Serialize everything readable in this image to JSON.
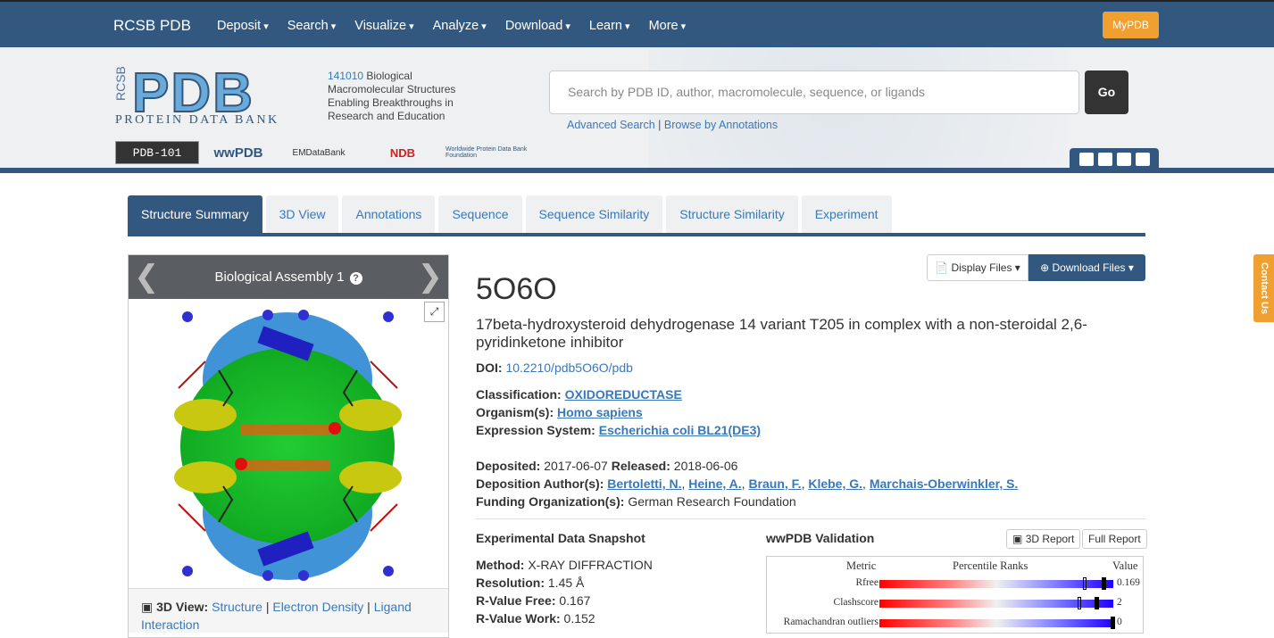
{
  "navbar": {
    "brand": "RCSB PDB",
    "items": [
      "Deposit",
      "Search",
      "Visualize",
      "Analyze",
      "Download",
      "Learn",
      "More"
    ],
    "mypdb": "MyPDB"
  },
  "header": {
    "logo_side": "RCSB",
    "logo_main": "PDB",
    "logo_sub": "PROTEIN DATA BANK",
    "count": "141010",
    "tagline": "Biological Macromolecular Structures Enabling Breakthroughs in Research and Education",
    "partners": [
      "PDB-101",
      "wwPDB",
      "EMDataBank",
      "NDB",
      "Worldwide Protein Data Bank Foundation"
    ],
    "search_placeholder": "Search by PDB ID, author, macromolecule, sequence, or ligands",
    "go": "Go",
    "advanced_search": "Advanced Search",
    "browse": "Browse by Annotations",
    "separator": "|"
  },
  "tabs": [
    "Structure Summary",
    "3D View",
    "Annotations",
    "Sequence",
    "Sequence Similarity",
    "Structure Similarity",
    "Experiment"
  ],
  "viewer": {
    "title": "Biological Assembly 1",
    "footer_label": "3D View:",
    "links": [
      "Structure",
      "Electron Density",
      "Ligand Interaction"
    ]
  },
  "buttons": {
    "display_files": "Display Files",
    "download_files": "Download Files"
  },
  "entry": {
    "id": "5O6O",
    "title": "17beta-hydroxysteroid dehydrogenase 14 variant T205 in complex with a non-steroidal 2,6-pyridinketone inhibitor",
    "doi_label": "DOI:",
    "doi": "10.2210/pdb5O6O/pdb",
    "classification_label": "Classification:",
    "classification": "OXIDOREDUCTASE",
    "organism_label": "Organism(s):",
    "organism": "Homo sapiens",
    "expression_label": "Expression System:",
    "expression": "Escherichia coli BL21(DE3)",
    "deposited_label": "Deposited:",
    "deposited": "2017-06-07",
    "released_label": "Released:",
    "released": "2018-06-06",
    "authors_label": "Deposition Author(s):",
    "authors": [
      "Bertoletti, N.",
      "Heine, A.",
      "Braun, F.",
      "Klebe, G.",
      "Marchais-Oberwinkler, S."
    ],
    "funding_label": "Funding Organization(s):",
    "funding": "German Research Foundation"
  },
  "snapshot": {
    "title": "Experimental Data Snapshot",
    "method_label": "Method:",
    "method": "X-RAY DIFFRACTION",
    "resolution_label": "Resolution:",
    "resolution": "1.45 Å",
    "rfree_label": "R-Value Free:",
    "rfree": "0.167",
    "rwork_label": "R-Value Work:",
    "rwork": "0.152"
  },
  "validation": {
    "title": "wwPDB Validation",
    "report_3d": "3D Report",
    "full_report": "Full Report",
    "col_metric": "Metric",
    "col_percentile": "Percentile Ranks",
    "col_value": "Value",
    "rows": [
      {
        "metric": "Rfree",
        "value": "0.169",
        "percentile_all": 0.88,
        "percentile_similar": 0.96
      },
      {
        "metric": "Clashscore",
        "value": "2",
        "percentile_all": 0.86,
        "percentile_similar": 0.93
      },
      {
        "metric": "Ramachandran outliers",
        "value": "0",
        "percentile_all": 1.0,
        "percentile_similar": 1.0
      }
    ]
  },
  "contact": "Contact Us"
}
